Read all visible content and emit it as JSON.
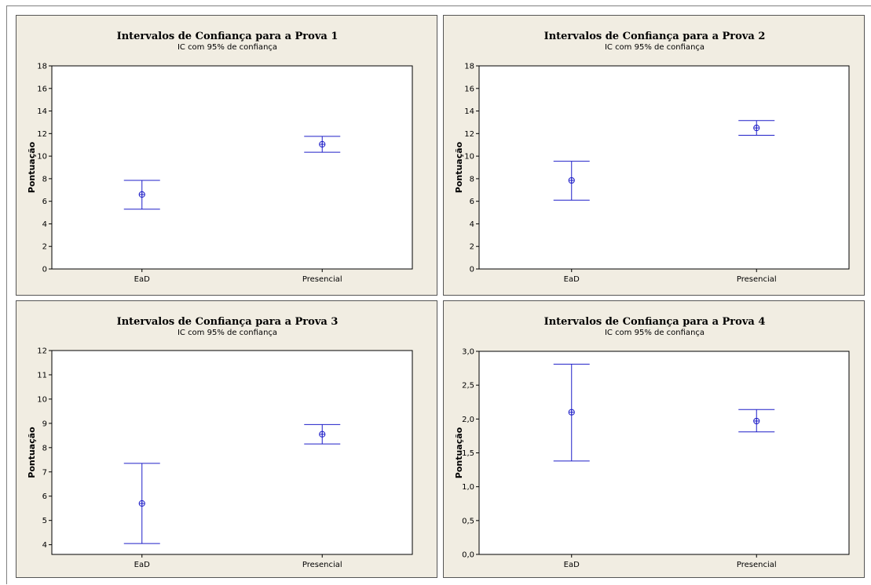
{
  "chart_data": [
    {
      "type": "interval",
      "title": "Intervalos de Confiança para a Prova 1",
      "subtitle": "IC com 95% de confiança",
      "xlabel": "",
      "ylabel": "Pontuação",
      "categories": [
        "EaD",
        "Presencial"
      ],
      "ylim": [
        0,
        18
      ],
      "yticks": [
        "0",
        "2",
        "4",
        "6",
        "8",
        "10",
        "12",
        "14",
        "16",
        "18"
      ],
      "yticks_values": [
        0,
        2,
        4,
        6,
        8,
        10,
        12,
        14,
        16,
        18
      ],
      "intervals": [
        {
          "category": "EaD",
          "mean": 6.6,
          "lower": 5.3,
          "upper": 7.85
        },
        {
          "category": "Presencial",
          "mean": 11.05,
          "lower": 10.35,
          "upper": 11.75
        }
      ],
      "color": "#1f1fc8",
      "grid": false
    },
    {
      "type": "interval",
      "title": "Intervalos de Confiança para a Prova 2",
      "subtitle": "IC com 95% de confiança",
      "xlabel": "",
      "ylabel": "Pontuação",
      "categories": [
        "EaD",
        "Presencial"
      ],
      "ylim": [
        0,
        18
      ],
      "yticks": [
        "0",
        "2",
        "4",
        "6",
        "8",
        "10",
        "12",
        "14",
        "16",
        "18"
      ],
      "yticks_values": [
        0,
        2,
        4,
        6,
        8,
        10,
        12,
        14,
        16,
        18
      ],
      "intervals": [
        {
          "category": "EaD",
          "mean": 7.85,
          "lower": 6.1,
          "upper": 9.55
        },
        {
          "category": "Presencial",
          "mean": 12.5,
          "lower": 11.85,
          "upper": 13.15
        }
      ],
      "color": "#1f1fc8",
      "grid": false
    },
    {
      "type": "interval",
      "title": "Intervalos de Confiança para a Prova 3",
      "subtitle": "IC com 95% de confiança",
      "xlabel": "",
      "ylabel": "Pontuação",
      "categories": [
        "EaD",
        "Presencial"
      ],
      "ylim": [
        3.6,
        12.0
      ],
      "yticks": [
        "4",
        "5",
        "6",
        "7",
        "8",
        "9",
        "10",
        "11",
        "12"
      ],
      "yticks_values": [
        4,
        5,
        6,
        7,
        8,
        9,
        10,
        11,
        12
      ],
      "intervals": [
        {
          "category": "EaD",
          "mean": 5.7,
          "lower": 4.05,
          "upper": 7.35
        },
        {
          "category": "Presencial",
          "mean": 8.55,
          "lower": 8.15,
          "upper": 8.95
        }
      ],
      "color": "#1f1fc8",
      "grid": false
    },
    {
      "type": "interval",
      "title": "Intervalos de Confiança para a Prova 4",
      "subtitle": "IC com 95% de confiança",
      "xlabel": "",
      "ylabel": "Pontuação",
      "categories": [
        "EaD",
        "Presencial"
      ],
      "ylim": [
        0,
        3.0
      ],
      "yticks": [
        "0,0",
        "0,5",
        "1,0",
        "1,5",
        "2,0",
        "2,5",
        "3,0"
      ],
      "yticks_values": [
        0,
        0.5,
        1.0,
        1.5,
        2.0,
        2.5,
        3.0
      ],
      "intervals": [
        {
          "category": "EaD",
          "mean": 2.1,
          "lower": 1.38,
          "upper": 2.81
        },
        {
          "category": "Presencial",
          "mean": 1.97,
          "lower": 1.81,
          "upper": 2.14
        }
      ],
      "color": "#1f1fc8",
      "grid": false
    }
  ]
}
